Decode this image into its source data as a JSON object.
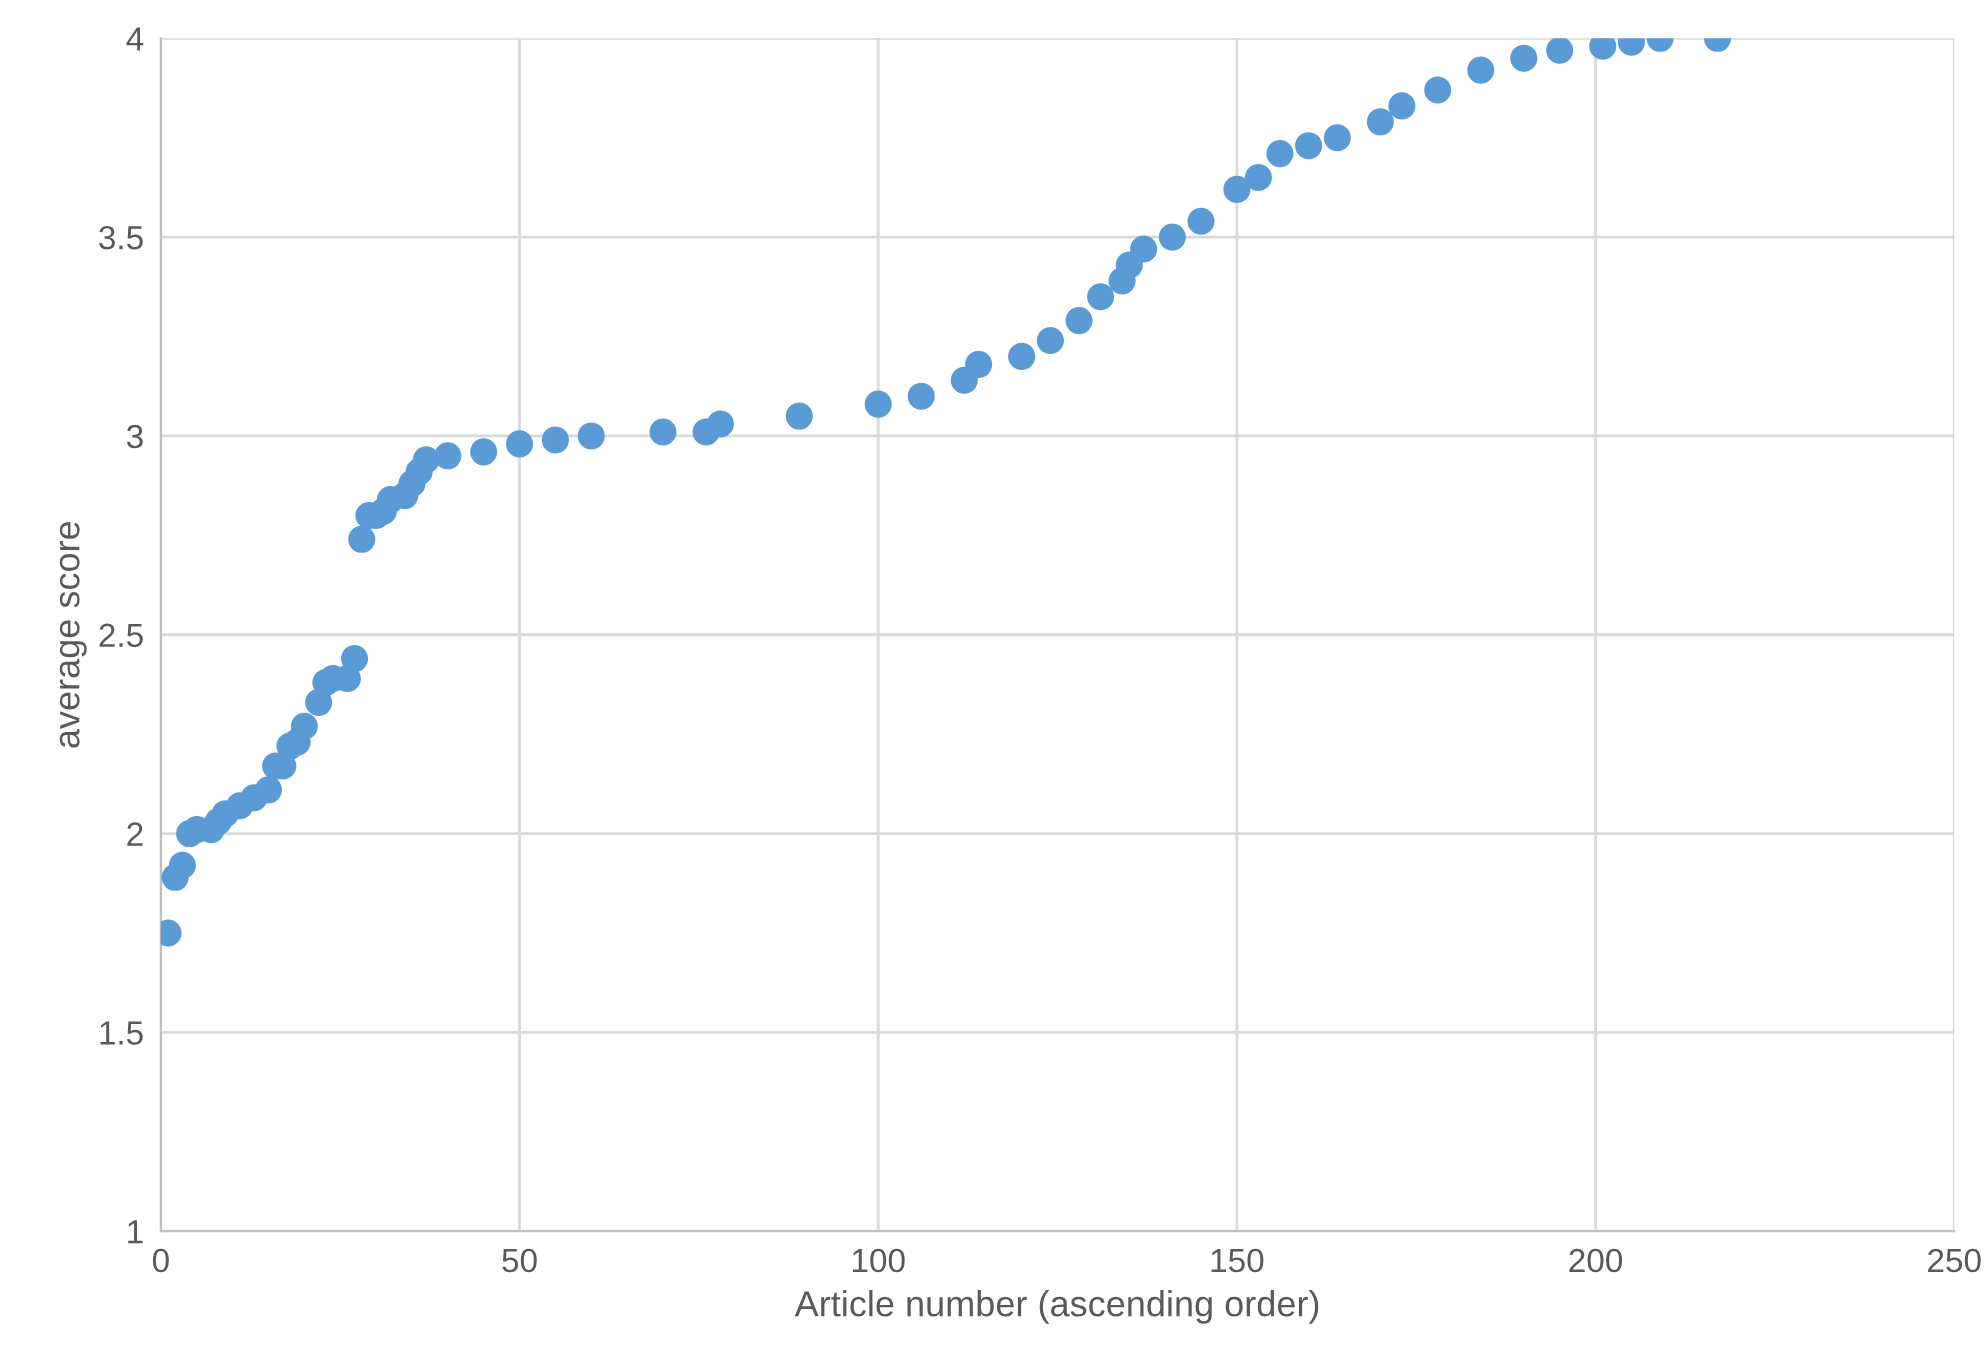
{
  "chart_data": {
    "type": "scatter",
    "xlabel": "Article number (ascending order)",
    "ylabel": "average score",
    "xlim": [
      0,
      250
    ],
    "xticks": [
      0,
      50,
      100,
      150,
      200,
      250
    ],
    "ylim": [
      1,
      4
    ],
    "yticks": [
      1,
      1.5,
      2,
      2.5,
      3,
      3.5,
      4
    ],
    "grid": true,
    "marker": "circle",
    "series": [
      {
        "color": "#5b9bd5",
        "x": [
          1,
          2,
          3,
          4,
          5,
          7,
          8,
          9,
          11,
          13,
          15,
          16,
          17,
          18,
          19,
          20,
          22,
          23,
          24,
          26,
          27,
          28,
          29,
          30,
          31,
          32,
          34,
          35,
          36,
          37,
          40,
          45,
          50,
          55,
          60,
          70,
          76,
          78,
          89,
          100,
          106,
          112,
          114,
          120,
          124,
          128,
          131,
          134,
          135,
          137,
          141,
          145,
          150,
          153,
          156,
          160,
          164,
          170,
          173,
          178,
          184,
          190,
          195,
          201,
          205,
          209,
          217
        ],
        "values": [
          1.75,
          1.89,
          1.92,
          2.0,
          2.01,
          2.01,
          2.03,
          2.05,
          2.07,
          2.09,
          2.11,
          2.17,
          2.17,
          2.22,
          2.23,
          2.27,
          2.33,
          2.38,
          2.39,
          2.39,
          2.44,
          2.74,
          2.8,
          2.8,
          2.81,
          2.84,
          2.85,
          2.88,
          2.91,
          2.94,
          2.95,
          2.96,
          2.98,
          2.99,
          3.0,
          3.01,
          3.01,
          3.03,
          3.05,
          3.08,
          3.1,
          3.14,
          3.18,
          3.2,
          3.24,
          3.29,
          3.35,
          3.39,
          3.43,
          3.47,
          3.5,
          3.54,
          3.62,
          3.65,
          3.71,
          3.73,
          3.75,
          3.79,
          3.83,
          3.87,
          3.92,
          3.95,
          3.97,
          3.98,
          3.99,
          4.0,
          4.0
        ]
      }
    ]
  }
}
